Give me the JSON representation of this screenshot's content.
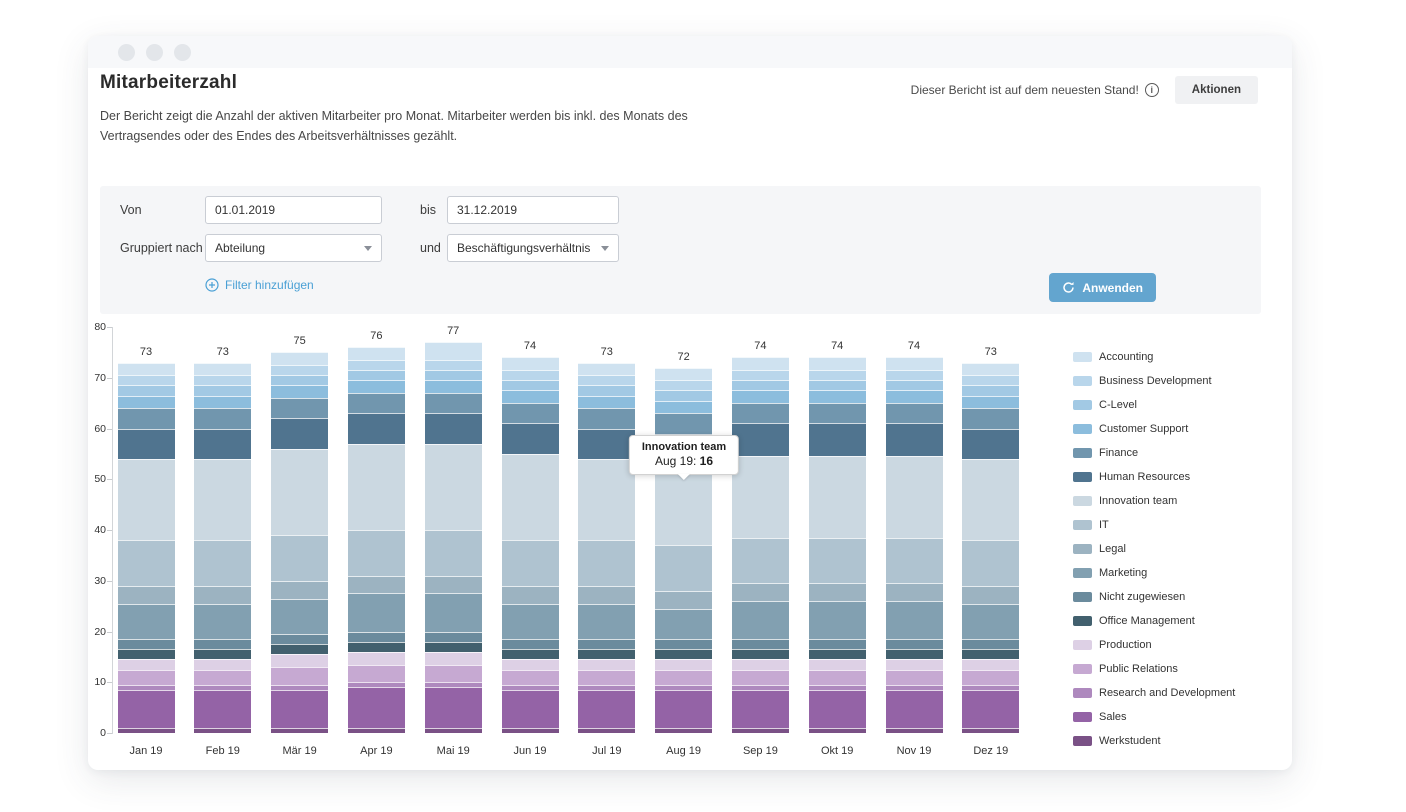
{
  "header": {
    "title": "Mitarbeiterzahl",
    "description": "Der Bericht zeigt die Anzahl der aktiven Mitarbeiter pro Monat. Mitarbeiter werden bis inkl. des Monats des Vertragsendes oder des Endes des Arbeitsverhältnisses gezählt.",
    "status_text": "Dieser Bericht ist auf dem neuesten Stand!",
    "status_icon": "info-icon",
    "actions_label": "Aktionen"
  },
  "filters": {
    "von_label": "Von",
    "von_value": "01.01.2019",
    "bis_label": "bis",
    "bis_value": "31.12.2019",
    "grouped_label": "Gruppiert nach",
    "group1_value": "Abteilung",
    "and_label": "und",
    "group2_value": "Beschäftigungsverhältnis",
    "add_filter_label": "Filter hinzufügen",
    "add_filter_icon": "plus-circle-icon",
    "apply_label": "Anwenden",
    "apply_icon": "refresh-icon",
    "apply_color": "#63a5cf",
    "link_color": "#4aa0d5"
  },
  "tooltip": {
    "series": "Innovation team",
    "label": "Aug 19:",
    "value": "16"
  },
  "chart_data": {
    "type": "bar",
    "stacked": true,
    "title": "",
    "xlabel": "",
    "ylabel": "",
    "ylim": [
      0,
      80
    ],
    "yticks": [
      0,
      10,
      20,
      30,
      40,
      50,
      60,
      70,
      80
    ],
    "grid": false,
    "legend_position": "right",
    "categories": [
      "Jan 19",
      "Feb 19",
      "Mär 19",
      "Apr 19",
      "Mai 19",
      "Jun 19",
      "Jul 19",
      "Aug 19",
      "Sep 19",
      "Okt 19",
      "Nov 19",
      "Dez 19"
    ],
    "totals": [
      73,
      73,
      75,
      76,
      77,
      74,
      73,
      72,
      74,
      74,
      74,
      73
    ],
    "stacking_note": "first series renders at top of stack, last series at bottom",
    "series": [
      {
        "name": "Accounting",
        "color": "#cfe2f0",
        "values": [
          2.5,
          2.5,
          2.5,
          2.5,
          3.5,
          2.5,
          2.5,
          2.5,
          2.5,
          2.5,
          2.5,
          2.5
        ]
      },
      {
        "name": "Business Development",
        "color": "#b9d6eb",
        "values": [
          2,
          2,
          2,
          2,
          2,
          2,
          2,
          2,
          2,
          2,
          2,
          2
        ]
      },
      {
        "name": "C-Level",
        "color": "#a2c9e4",
        "values": [
          2,
          2,
          2,
          2,
          2,
          2,
          2,
          2,
          2,
          2,
          2,
          2
        ]
      },
      {
        "name": "Customer Support",
        "color": "#8cbddd",
        "values": [
          2.5,
          2.5,
          2.5,
          2.5,
          2.5,
          2.5,
          2.5,
          2.5,
          2.5,
          2.5,
          2.5,
          2.5
        ]
      },
      {
        "name": "Finance",
        "color": "#7196ae",
        "values": [
          4,
          4,
          4,
          4,
          4,
          4,
          4,
          4,
          4,
          4,
          4,
          4
        ]
      },
      {
        "name": "Human Resources",
        "color": "#50748f",
        "values": [
          6,
          6,
          6,
          6,
          6,
          6,
          6,
          6,
          6.5,
          6.5,
          6.5,
          6
        ]
      },
      {
        "name": "Innovation team",
        "color": "#cbd8e1",
        "values": [
          16,
          16,
          17,
          17,
          17,
          17,
          16,
          16,
          16,
          16,
          16,
          16
        ]
      },
      {
        "name": "IT",
        "color": "#afc3d0",
        "values": [
          9,
          9,
          9,
          9,
          9,
          9,
          9,
          9,
          9,
          9,
          9,
          9
        ]
      },
      {
        "name": "Legal",
        "color": "#9cb3c1",
        "values": [
          3.5,
          3.5,
          3.5,
          3.5,
          3.5,
          3.5,
          3.5,
          3.5,
          3.5,
          3.5,
          3.5,
          3.5
        ]
      },
      {
        "name": "Marketing",
        "color": "#82a0b1",
        "values": [
          7,
          7,
          7,
          7.5,
          7.5,
          7,
          7,
          6,
          7.5,
          7.5,
          7.5,
          7
        ]
      },
      {
        "name": "Nicht zugewiesen",
        "color": "#6b8b9d",
        "values": [
          2,
          2,
          2,
          2,
          2,
          2,
          2,
          2,
          2,
          2,
          2,
          2
        ]
      },
      {
        "name": "Office Management",
        "color": "#42606e",
        "values": [
          2,
          2,
          2,
          2,
          2,
          2,
          2,
          2,
          2,
          2,
          2,
          2
        ]
      },
      {
        "name": "Production",
        "color": "#ddd0e5",
        "values": [
          2,
          2,
          2.5,
          2.5,
          2.5,
          2,
          2,
          2,
          2,
          2,
          2,
          2
        ]
      },
      {
        "name": "Public Relations",
        "color": "#c6a9d2",
        "values": [
          3,
          3,
          3.5,
          3.5,
          3.5,
          3,
          3,
          3,
          3,
          3,
          3,
          3
        ]
      },
      {
        "name": "Research and Development",
        "color": "#ae89be",
        "values": [
          1,
          1,
          1,
          1,
          1,
          1,
          1,
          1,
          1,
          1,
          1,
          1
        ]
      },
      {
        "name": "Sales",
        "color": "#9463a6",
        "values": [
          7.5,
          7.5,
          7.5,
          8,
          8,
          7.5,
          7.5,
          7.5,
          7.5,
          7.5,
          7.5,
          7.5
        ]
      },
      {
        "name": "Werkstudent",
        "color": "#7a5186",
        "values": [
          1,
          1,
          1,
          1,
          1,
          1,
          1,
          1,
          1,
          1,
          1,
          1
        ]
      }
    ]
  }
}
